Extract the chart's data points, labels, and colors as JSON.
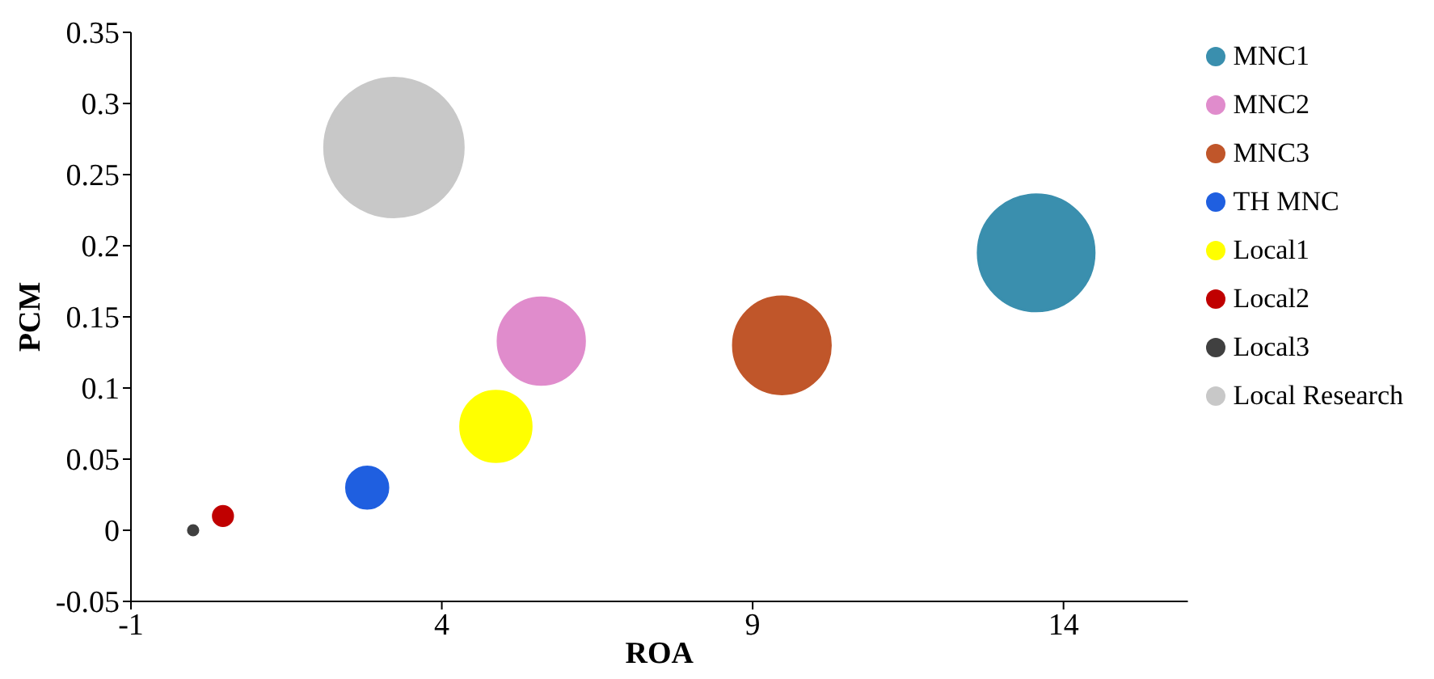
{
  "chart_data": {
    "type": "bubble",
    "xlabel": "ROA",
    "ylabel": "PCM",
    "xlim": [
      -1,
      16
    ],
    "xticks": [
      -1,
      4,
      9,
      14
    ],
    "ylim": [
      -0.05,
      0.35
    ],
    "yticks": [
      -0.05,
      0,
      0.05,
      0.1,
      0.15,
      0.2,
      0.25,
      0.3,
      0.35
    ],
    "grid": false,
    "legend": "top right",
    "series": [
      {
        "name": "MNC1",
        "color": "#3a8fae",
        "x": [
          13.56
        ],
        "values": [
          0.195
        ],
        "sizes": [
          0.7
        ]
      },
      {
        "name": "MNC2",
        "color": "#e08ccc",
        "x": [
          5.6
        ],
        "values": [
          0.133
        ],
        "sizes": [
          0.39
        ]
      },
      {
        "name": "MNC3",
        "color": "#c0562a",
        "x": [
          9.47
        ],
        "values": [
          0.13
        ],
        "sizes": [
          0.49
        ]
      },
      {
        "name": "TH MNC",
        "color": "#1f5fe0",
        "x": [
          2.8
        ],
        "values": [
          0.03
        ],
        "sizes": [
          0.09
        ]
      },
      {
        "name": "Local1",
        "color": "#ffff00",
        "x": [
          4.87
        ],
        "values": [
          0.073
        ],
        "sizes": [
          0.26
        ]
      },
      {
        "name": "Local2",
        "color": "#c00000",
        "x": [
          0.48
        ],
        "values": [
          0.01
        ],
        "sizes": [
          0.02
        ]
      },
      {
        "name": "Local3",
        "color": "#404040",
        "x": [
          0
        ],
        "values": [
          0
        ],
        "sizes": [
          0.005
        ]
      },
      {
        "name": "Local Research",
        "color": "#c8c8c8",
        "x": [
          3.23
        ],
        "values": [
          0.269
        ],
        "sizes": [
          1
        ]
      }
    ]
  }
}
